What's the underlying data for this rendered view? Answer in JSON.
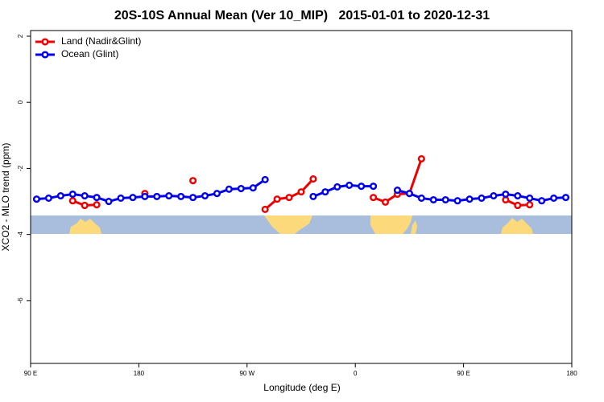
{
  "chart_data": {
    "type": "line",
    "title": "20S-10S Annual Mean (Ver 10_MIP)   2015-01-01 to 2020-12-31",
    "x_label": "Longitude (deg E)",
    "y_label": "XCO2 - MLO trend (ppm)",
    "x": [
      95,
      105,
      115,
      125,
      135,
      145,
      155,
      165,
      175,
      185,
      195,
      205,
      215,
      225,
      235,
      245,
      255,
      265,
      275,
      285,
      295,
      305,
      315,
      325,
      335,
      345,
      355,
      365,
      375,
      385,
      395,
      405,
      415,
      425,
      435,
      445,
      455,
      465,
      475,
      485,
      495,
      505,
      515,
      525,
      535
    ],
    "series": [
      {
        "name": "Land (Nadir&Glint)",
        "color": "#ee0000",
        "values": [
          null,
          null,
          null,
          -2.98,
          -3.12,
          -3.1,
          null,
          null,
          null,
          -2.76,
          null,
          null,
          null,
          -2.37,
          null,
          null,
          null,
          null,
          null,
          -3.24,
          -2.93,
          -2.88,
          -2.71,
          -2.32,
          null,
          null,
          null,
          null,
          -2.88,
          -3.02,
          -2.78,
          -2.76,
          -1.71,
          null,
          null,
          null,
          null,
          null,
          null,
          -2.95,
          -3.12,
          -3.1,
          null,
          null,
          null
        ]
      },
      {
        "name": "Ocean (Glint)",
        "color": "#0000ee",
        "values": [
          -2.93,
          -2.9,
          -2.83,
          -2.78,
          -2.83,
          -2.88,
          -3.0,
          -2.9,
          -2.88,
          -2.85,
          -2.85,
          -2.83,
          -2.85,
          -2.88,
          -2.83,
          -2.76,
          -2.63,
          -2.61,
          -2.59,
          -2.34,
          null,
          null,
          null,
          -2.85,
          -2.71,
          -2.56,
          -2.51,
          -2.54,
          -2.54,
          null,
          -2.66,
          -2.76,
          -2.9,
          -2.95,
          -2.95,
          -2.98,
          -2.93,
          -2.9,
          -2.83,
          -2.78,
          -2.83,
          -2.9,
          -2.98,
          -2.9,
          -2.88
        ]
      }
    ],
    "xlim": [
      90,
      540
    ],
    "xticks": [
      {
        "value": 90,
        "label": "90 E"
      },
      {
        "value": 180,
        "label": "180"
      },
      {
        "value": 270,
        "label": "90 W"
      },
      {
        "value": 360,
        "label": "0"
      },
      {
        "value": 450,
        "label": "90 E"
      },
      {
        "value": 540,
        "label": "180"
      }
    ],
    "ylim": [
      -7.9,
      2.17
    ],
    "yticks": [
      -6,
      -4,
      -2,
      0,
      2
    ],
    "legend": "top-left"
  }
}
